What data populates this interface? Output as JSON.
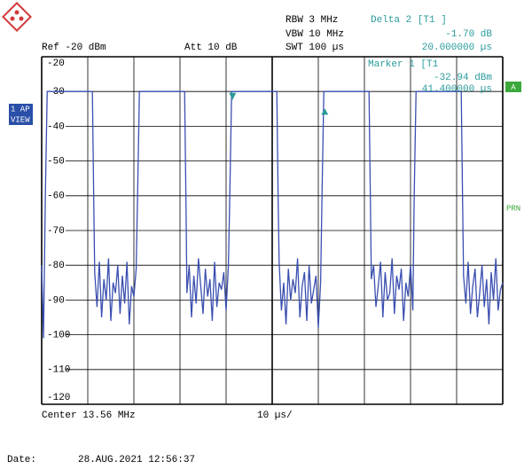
{
  "chart_data": {
    "type": "line",
    "settings": {
      "rbw": "RBW 3 MHz",
      "vbw": "VBW 10 MHz",
      "swt": "SWT 100 µs",
      "ref": "Ref -20 dBm",
      "att": "Att  10 dB",
      "center": "Center 13.56 MHz",
      "span": "10 µs/"
    },
    "side_labels": {
      "ap": "1 AP",
      "view": "VIEW",
      "a": "A",
      "prn": "PRN"
    },
    "date_label": "Date:",
    "date": "28.AUG.2021  12:56:37",
    "markers": [
      {
        "label": "Marker 1 [T1",
        "x": {
          "value": 41.4,
          "label": "41.400000 µs"
        },
        "y": {
          "value": -32.94,
          "label": "-32.94 dBm"
        }
      },
      {
        "label": "Delta 2 [T1 ]",
        "x": {
          "value": 20,
          "label": "20.000000 µs"
        },
        "y": {
          "value": -1.7,
          "label": "-1.70 dB"
        }
      }
    ],
    "xlim": [
      0,
      100
    ],
    "ylim": [
      -120,
      -20
    ],
    "yticks": [
      -20,
      -30,
      -40,
      -50,
      -60,
      -70,
      -80,
      -90,
      -100,
      -110,
      -120
    ],
    "grid": true,
    "series": [
      {
        "color": "#3a4fb0",
        "x": [
          0,
          0.4,
          0.8,
          1.2,
          11.0,
          11.3,
          11.5,
          12,
          12.5,
          13,
          13.5,
          14,
          14.5,
          15,
          15.5,
          16,
          16.5,
          17,
          17.5,
          18,
          18.5,
          19,
          19.5,
          20,
          20.5,
          20.8,
          21.2,
          31.0,
          31.3,
          31.5,
          32,
          32.5,
          33,
          33.5,
          34,
          34.5,
          35,
          35.5,
          36,
          36.5,
          37,
          37.5,
          38,
          38.5,
          39,
          39.5,
          40,
          40.5,
          40.8,
          41.2,
          51.0,
          51.3,
          51.5,
          52,
          52.5,
          53,
          53.5,
          54,
          54.5,
          55,
          55.5,
          56,
          56.5,
          57,
          57.5,
          58,
          58.5,
          59,
          59.5,
          60,
          60.5,
          60.8,
          61.2,
          71.0,
          71.3,
          71.5,
          72,
          72.5,
          73,
          73.5,
          74,
          74.5,
          75,
          75.5,
          76,
          76.5,
          77,
          77.5,
          78,
          78.5,
          79,
          79.5,
          80,
          80.5,
          80.8,
          81.2,
          91.0,
          91.3,
          91.5,
          92,
          92.5,
          93,
          93.5,
          94,
          94.5,
          95,
          95.5,
          96,
          96.5,
          97,
          97.5,
          98,
          98.5,
          99,
          99.5,
          100
        ],
        "values": [
          -80,
          -101,
          -60,
          -30,
          -30,
          -62,
          -82,
          -92,
          -79,
          -95,
          -84,
          -90,
          -78,
          -96,
          -85,
          -88,
          -80,
          -94,
          -83,
          -91,
          -79,
          -97,
          -86,
          -89,
          -81,
          -60,
          -30,
          -30,
          -62,
          -88,
          -80,
          -95,
          -83,
          -91,
          -78,
          -86,
          -94,
          -81,
          -89,
          -84,
          -96,
          -79,
          -92,
          -85,
          -87,
          -82,
          -93,
          -80,
          -60,
          -30,
          -30,
          -62,
          -79,
          -93,
          -85,
          -97,
          -81,
          -90,
          -84,
          -88,
          -78,
          -95,
          -86,
          -82,
          -96,
          -80,
          -91,
          -87,
          -83,
          -98,
          -85,
          -60,
          -30,
          -30,
          -62,
          -84,
          -80,
          -92,
          -86,
          -79,
          -95,
          -82,
          -90,
          -88,
          -78,
          -94,
          -83,
          -87,
          -81,
          -96,
          -85,
          -89,
          -80,
          -93,
          -60,
          -30,
          -30,
          -62,
          -83,
          -91,
          -79,
          -94,
          -86,
          -81,
          -95,
          -88,
          -80,
          -92,
          -84,
          -97,
          -82,
          -90,
          -78,
          -93,
          -87,
          -85
        ]
      }
    ]
  }
}
